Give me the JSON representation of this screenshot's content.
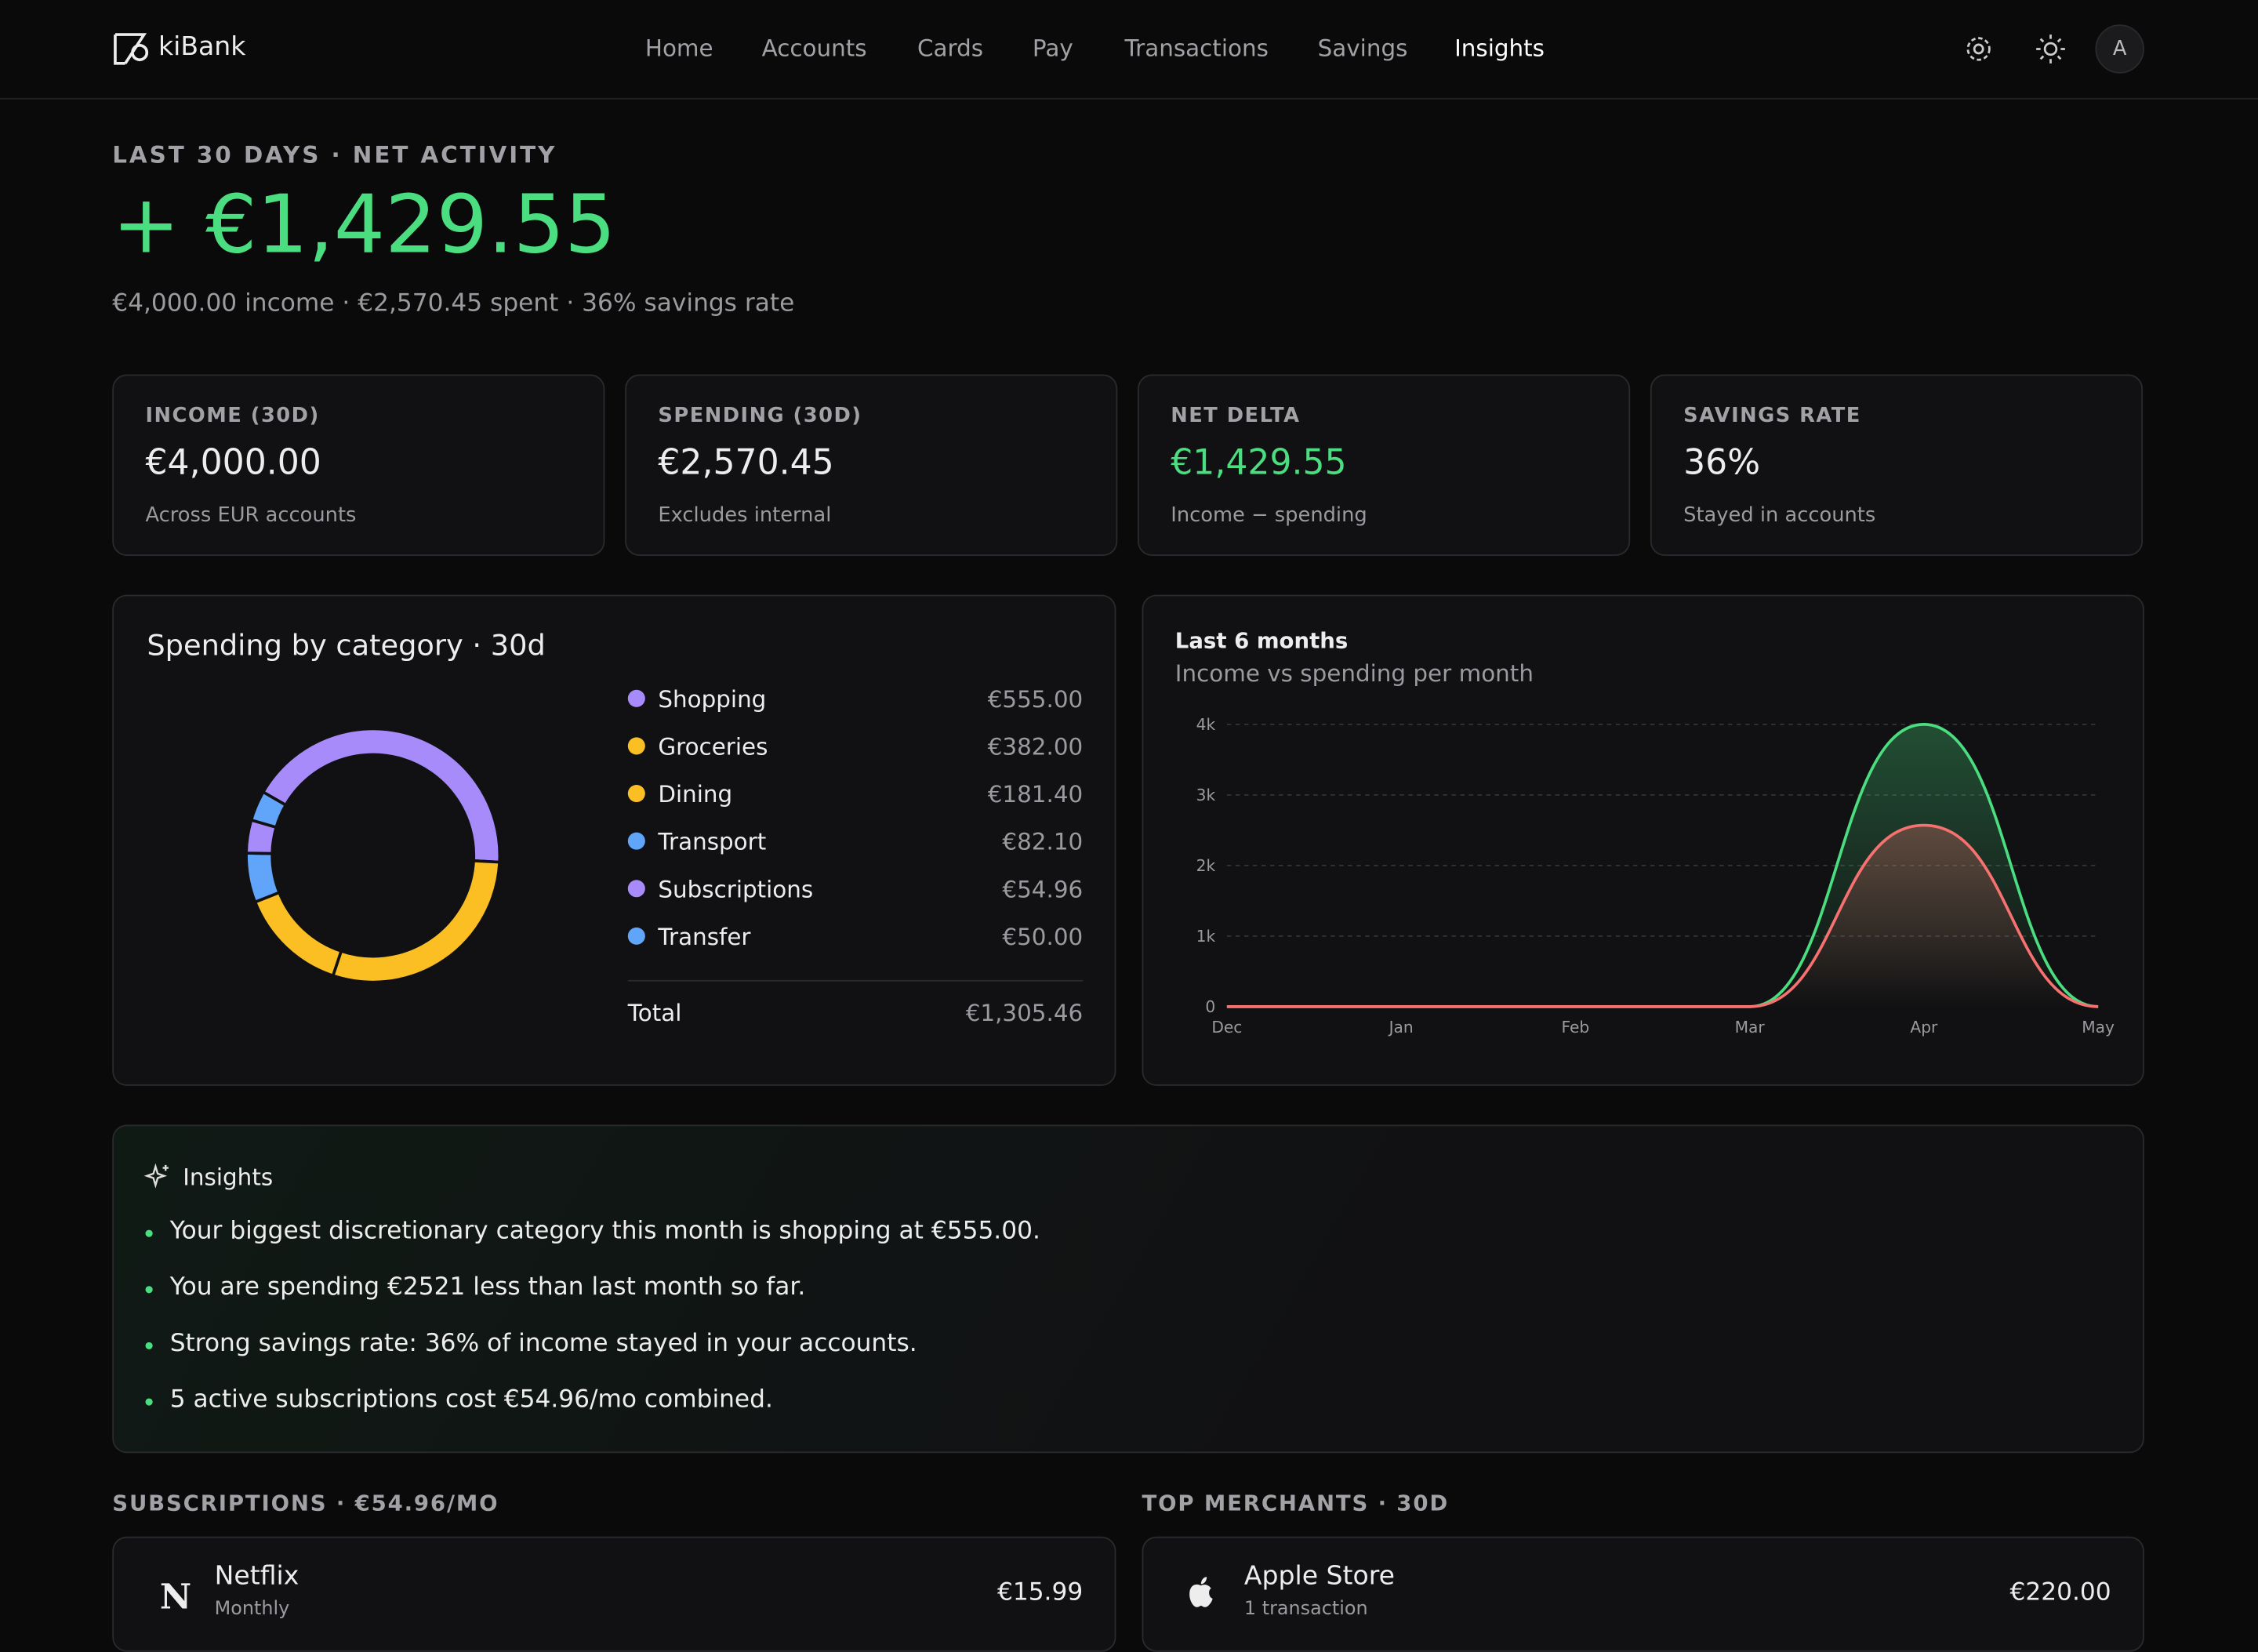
{
  "nav": {
    "brand": "kiBank",
    "links": [
      "Home",
      "Accounts",
      "Cards",
      "Pay",
      "Transactions",
      "Savings",
      "Insights"
    ],
    "avatar": "A"
  },
  "hero": {
    "eyebrow": "LAST 30 DAYS · NET ACTIVITY",
    "amount": "+ €1,429.55",
    "summary": "€4,000.00 income · €2,570.45 spent · 36% savings rate"
  },
  "stats": [
    {
      "label": "INCOME (30D)",
      "value": "€4,000.00",
      "note": "Across EUR accounts"
    },
    {
      "label": "SPENDING (30D)",
      "value": "€2,570.45",
      "note": "Excludes internal"
    },
    {
      "label": "NET DELTA",
      "value": "€1,429.55",
      "note": "Income − spending"
    },
    {
      "label": "SAVINGS RATE",
      "value": "36%",
      "note": "Stayed in accounts"
    }
  ],
  "chart_data": [
    {
      "type": "donut",
      "title": "Spending by category · 30d",
      "categories": [
        "Shopping",
        "Groceries",
        "Dining",
        "Transport",
        "Subscriptions",
        "Transfer"
      ],
      "values": [
        555,
        382,
        181.4,
        82.1,
        54.96,
        50
      ],
      "value_labels": [
        "€555.00",
        "€382.00",
        "€181.40",
        "€82.10",
        "€54.96",
        "€50.00"
      ],
      "colors": [
        "#a78bfa",
        "#fbbf24",
        "#fbbf24",
        "#60a5fa",
        "#a78bfa",
        "#60a5fa"
      ],
      "total_label": "Total",
      "total": "€1,305.46"
    },
    {
      "type": "line",
      "title": "Last 6 months",
      "subtitle": "Income vs spending per month",
      "x": [
        "Dec",
        "Jan",
        "Feb",
        "Mar",
        "Apr",
        "May"
      ],
      "series": [
        {
          "color": "#4ade80",
          "values": [
            0,
            0,
            0,
            0,
            4000,
            0
          ]
        },
        {
          "color": "#f87171",
          "values": [
            0,
            0,
            0,
            0,
            2570.45,
            0
          ]
        }
      ],
      "ylim": [
        0,
        4000
      ],
      "yticks": [
        0,
        {
          "value": 1000,
          "label": "1k"
        },
        {
          "value": 2000,
          "label": "2k"
        },
        {
          "value": 3000,
          "label": "3k"
        },
        {
          "value": 4000,
          "label": "4k"
        }
      ],
      "grid": true
    }
  ],
  "insights": {
    "title": "Insights",
    "items": [
      "Your biggest discretionary category this month is shopping at €555.00.",
      "You are spending €2521 less than last month so far.",
      "Strong savings rate: 36% of income stayed in your accounts.",
      "5 active subscriptions cost €54.96/mo combined."
    ]
  },
  "subscriptions": {
    "title": "SUBSCRIPTIONS · €54.96/MO",
    "items": [
      {
        "name": "Netflix",
        "note": "Monthly",
        "amount": "€15.99"
      }
    ]
  },
  "merchants": {
    "title": "TOP MERCHANTS · 30D",
    "items": [
      {
        "name": "Apple Store",
        "note": "1 transaction",
        "amount": "€220.00"
      }
    ]
  }
}
